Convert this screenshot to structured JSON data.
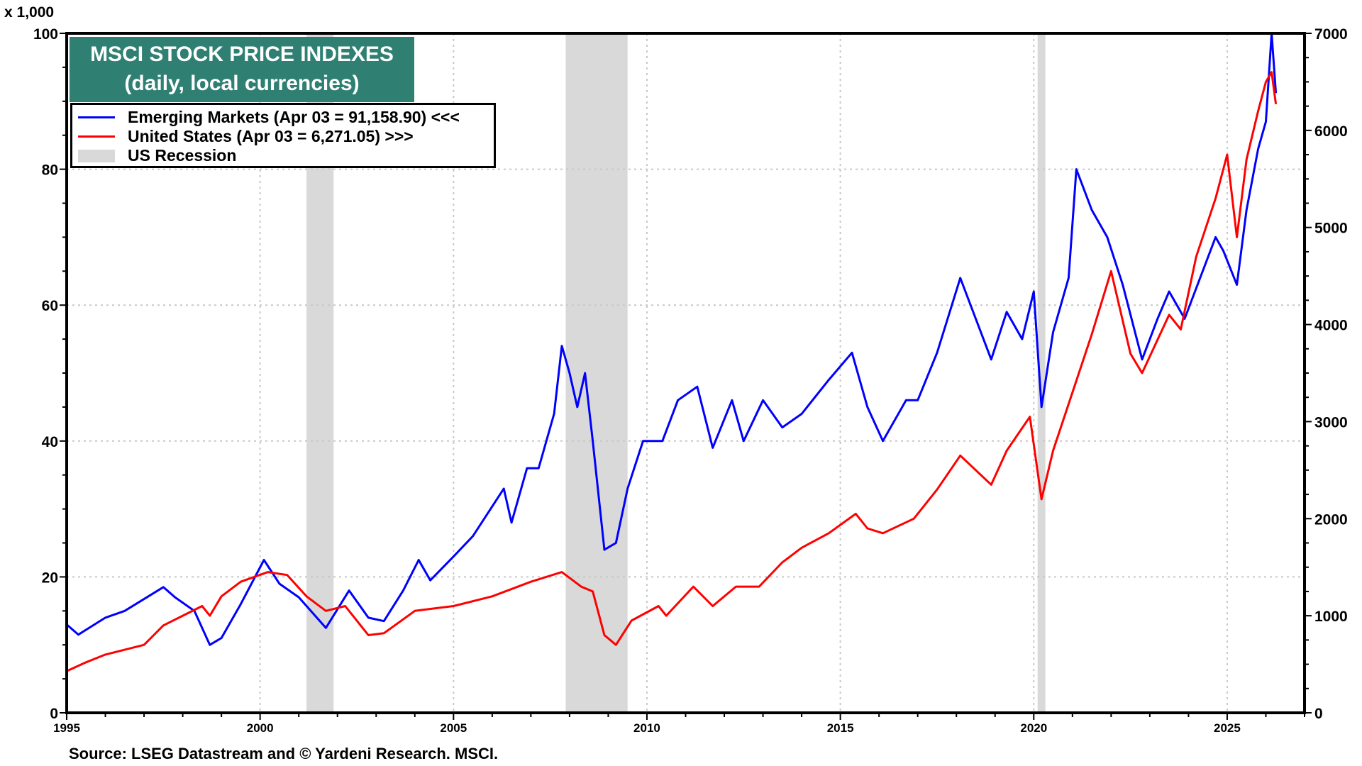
{
  "chart_data": {
    "type": "line",
    "title": "MSCI STOCK PRICE INDEXES",
    "subtitle": "(daily, local currencies)",
    "left_axis_unit": "x 1,000",
    "xlim": [
      1995,
      2027
    ],
    "x_ticks": [
      1995,
      2000,
      2005,
      2010,
      2015,
      2020,
      2025
    ],
    "left_ylim": [
      0,
      100
    ],
    "left_ticks": [
      0,
      20,
      40,
      60,
      80,
      100
    ],
    "right_ylim": [
      0,
      7000
    ],
    "right_ticks": [
      0,
      1000,
      2000,
      3000,
      4000,
      5000,
      6000,
      7000
    ],
    "grid": true,
    "legend_placement": "top-left",
    "recessions": [
      [
        2001.2,
        2001.9
      ],
      [
        2007.9,
        2009.5
      ],
      [
        2020.1,
        2020.3
      ]
    ],
    "colors": {
      "em": "#0000ff",
      "us": "#ff0000",
      "recession": "#d9d9d9",
      "title_bg": "#2f7f72"
    },
    "series": [
      {
        "name": "Emerging Markets (Apr 03 = 91,158.90) <<<",
        "axis": "left",
        "x": [
          1995.0,
          1995.3,
          1996.0,
          1996.5,
          1997.5,
          1997.8,
          1998.3,
          1998.7,
          1999.0,
          1999.5,
          2000.1,
          2000.5,
          2001.0,
          2001.7,
          2002.3,
          2002.8,
          2003.2,
          2003.7,
          2004.1,
          2004.4,
          2005.0,
          2005.5,
          2006.3,
          2006.5,
          2006.9,
          2007.2,
          2007.6,
          2007.8,
          2008.0,
          2008.2,
          2008.4,
          2008.6,
          2008.9,
          2009.2,
          2009.5,
          2009.9,
          2010.4,
          2010.8,
          2011.3,
          2011.7,
          2012.2,
          2012.5,
          2013.0,
          2013.5,
          2014.0,
          2014.7,
          2015.3,
          2015.7,
          2016.1,
          2016.7,
          2017.0,
          2017.5,
          2018.1,
          2018.5,
          2018.9,
          2019.3,
          2019.7,
          2020.0,
          2020.2,
          2020.5,
          2020.9,
          2021.1,
          2021.5,
          2021.9,
          2022.3,
          2022.8,
          2023.2,
          2023.5,
          2023.9,
          2024.3,
          2024.7,
          2024.9,
          2025.25,
          2025.5,
          2025.8,
          2026.0,
          2026.15,
          2026.26
        ],
        "values": [
          13,
          11.5,
          14,
          15,
          18.5,
          17,
          15,
          10,
          11,
          16,
          22.5,
          19,
          17,
          12.5,
          18,
          14,
          13.5,
          18,
          22.5,
          19.5,
          23,
          26,
          33,
          28,
          36,
          36,
          44,
          54,
          50,
          45,
          50,
          40,
          24,
          25,
          33,
          40,
          40,
          46,
          48,
          39,
          46,
          40,
          46,
          42,
          44,
          49,
          53,
          45,
          40,
          46,
          46,
          53,
          64,
          58,
          52,
          59,
          55,
          62,
          45,
          56,
          64,
          80,
          74,
          70,
          63,
          52,
          58,
          62,
          58,
          64,
          70,
          68,
          63,
          74,
          83,
          87,
          100,
          91.2
        ]
      },
      {
        "name": "United States (Apr 03 = 6,271.05) >>>",
        "axis": "right",
        "x": [
          1995.0,
          1995.5,
          1996.0,
          1997.0,
          1997.5,
          1998.5,
          1998.7,
          1999.0,
          1999.5,
          2000.2,
          2000.7,
          2001.2,
          2001.7,
          2002.2,
          2002.8,
          2003.2,
          2004.0,
          2005.0,
          2006.0,
          2007.0,
          2007.8,
          2008.3,
          2008.6,
          2008.9,
          2009.2,
          2009.6,
          2010.3,
          2010.5,
          2011.2,
          2011.7,
          2012.3,
          2012.9,
          2013.5,
          2014.0,
          2014.7,
          2015.4,
          2015.7,
          2016.1,
          2016.9,
          2017.5,
          2018.1,
          2018.9,
          2019.3,
          2019.9,
          2020.2,
          2020.5,
          2021.0,
          2021.5,
          2022.0,
          2022.5,
          2022.8,
          2023.5,
          2023.8,
          2024.2,
          2024.7,
          2025.0,
          2025.25,
          2025.5,
          2025.8,
          2026.0,
          2026.15,
          2026.26
        ],
        "values": [
          430,
          520,
          600,
          700,
          900,
          1100,
          1000,
          1200,
          1350,
          1450,
          1420,
          1200,
          1050,
          1100,
          800,
          820,
          1050,
          1100,
          1200,
          1350,
          1450,
          1300,
          1250,
          800,
          700,
          950,
          1100,
          1000,
          1300,
          1100,
          1300,
          1300,
          1550,
          1700,
          1850,
          2050,
          1900,
          1850,
          2000,
          2300,
          2650,
          2350,
          2700,
          3050,
          2200,
          2700,
          3300,
          3900,
          4550,
          3700,
          3500,
          4100,
          3950,
          4700,
          5300,
          5750,
          4900,
          5700,
          6200,
          6500,
          6600,
          6271
        ]
      }
    ],
    "legend": {
      "recession_label": "US Recession"
    },
    "source": "Source: LSEG Datastream and © Yardeni Research. MSCI."
  }
}
